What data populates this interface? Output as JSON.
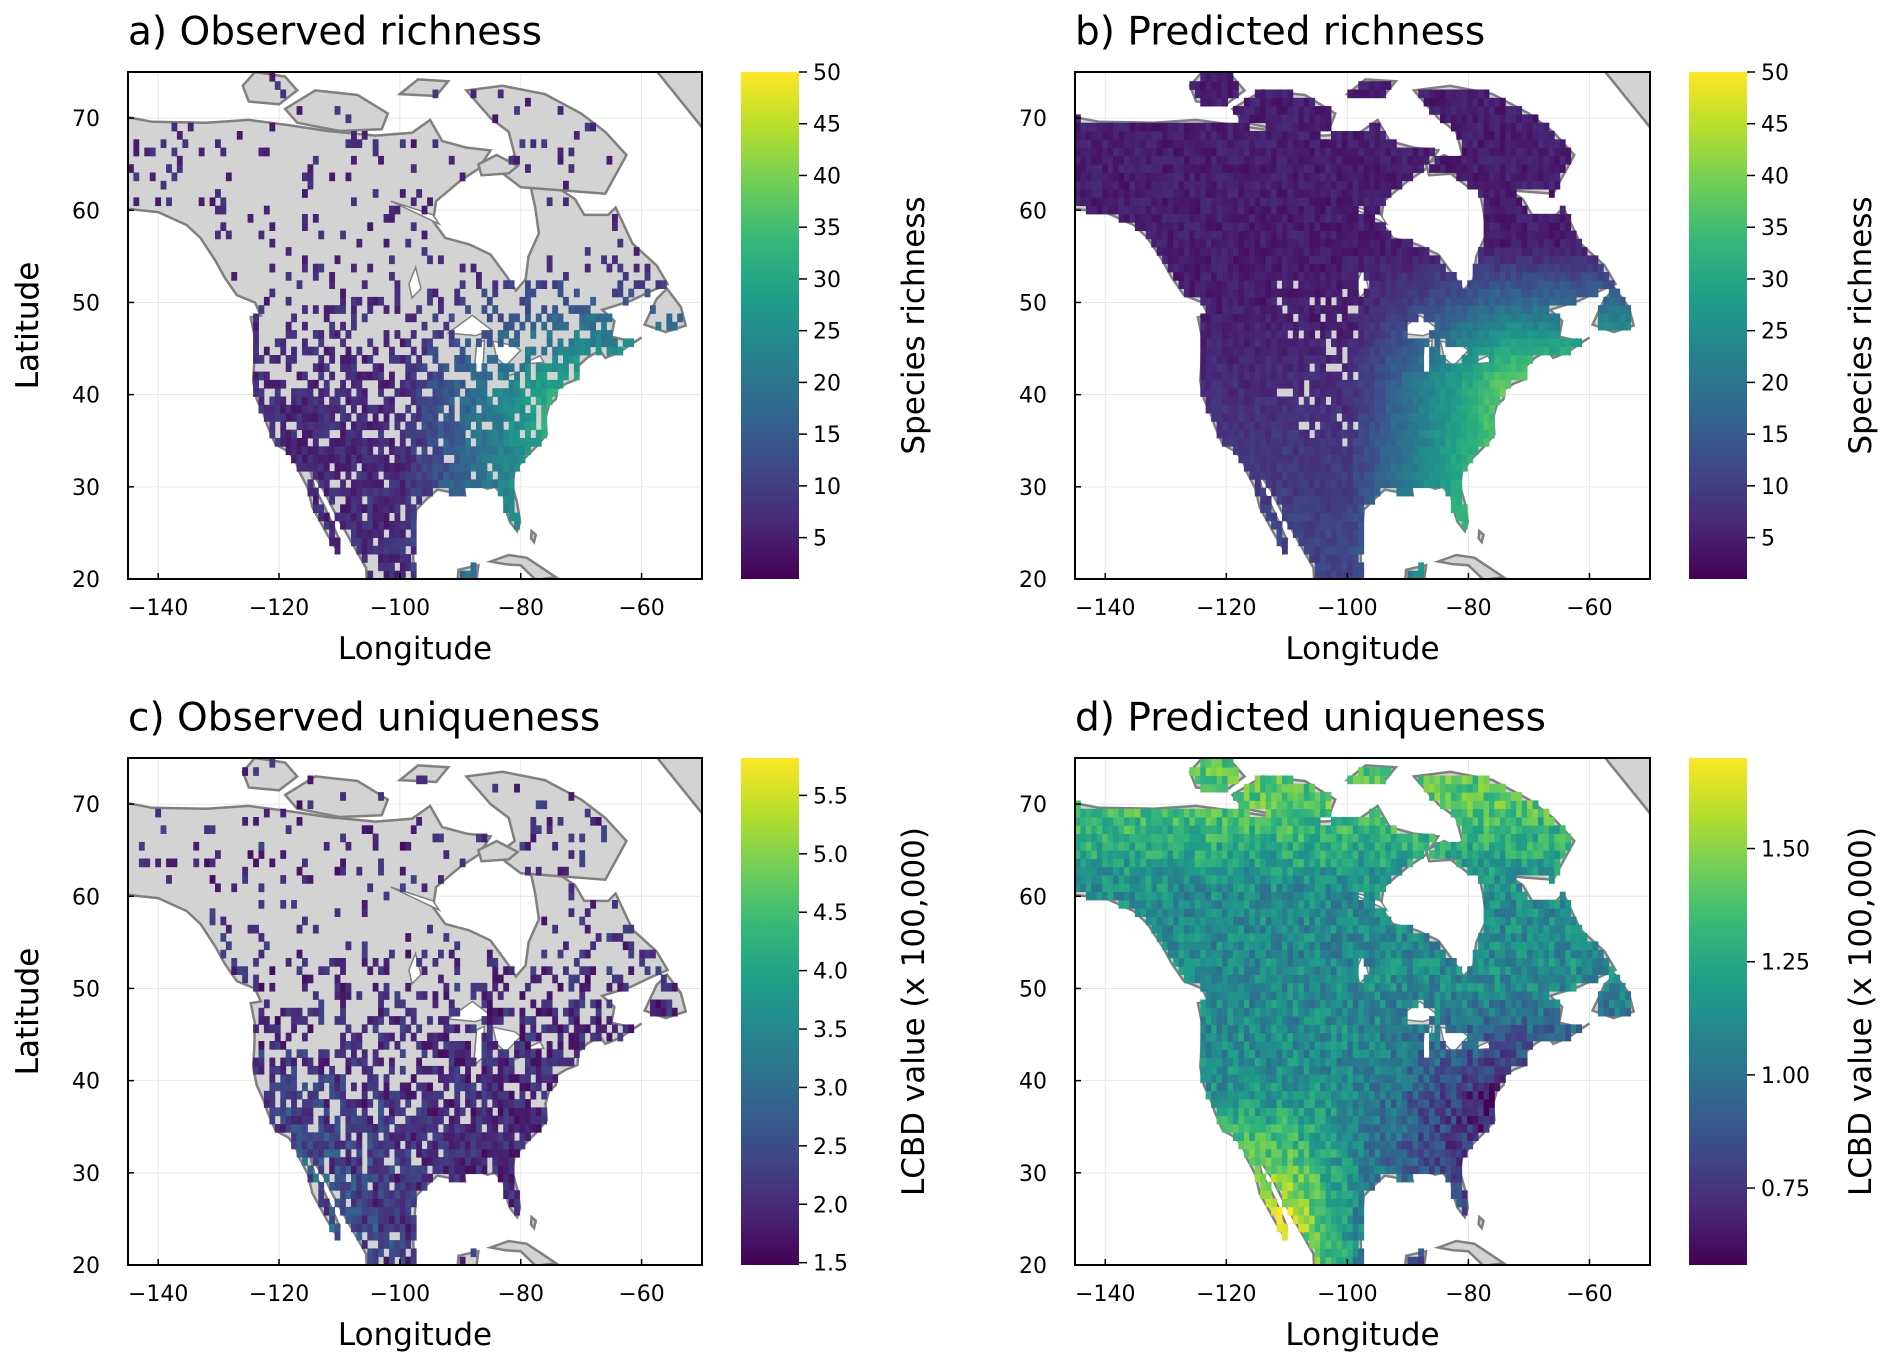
{
  "chart_data": [
    {
      "type": "heatmap",
      "title": "a) Observed richness",
      "xlabel": "Longitude",
      "ylabel": "Latitude",
      "xlim": [
        -145,
        -50
      ],
      "ylim": [
        20,
        75
      ],
      "xticks": [
        -140,
        -120,
        -100,
        -80,
        -60
      ],
      "yticks": [
        20,
        30,
        40,
        50,
        60,
        70
      ],
      "colorbar": {
        "label": "Species richness",
        "range": [
          1,
          50
        ],
        "ticks": [
          5,
          10,
          15,
          20,
          25,
          30,
          35,
          40,
          45,
          50
        ],
        "colormap": "viridis"
      },
      "grid": true
    },
    {
      "type": "heatmap",
      "title": "b) Predicted richness",
      "xlabel": "Longitude",
      "ylabel": "Latitude",
      "xlim": [
        -145,
        -50
      ],
      "ylim": [
        20,
        75
      ],
      "xticks": [
        -140,
        -120,
        -100,
        -80,
        -60
      ],
      "yticks": [
        20,
        30,
        40,
        50,
        60,
        70
      ],
      "colorbar": {
        "label": "Species richness",
        "range": [
          1,
          50
        ],
        "ticks": [
          5,
          10,
          15,
          20,
          25,
          30,
          35,
          40,
          45,
          50
        ],
        "colormap": "viridis"
      },
      "grid": true
    },
    {
      "type": "heatmap",
      "title": "c) Observed uniqueness",
      "xlabel": "Longitude",
      "ylabel": "Latitude",
      "xlim": [
        -145,
        -50
      ],
      "ylim": [
        20,
        75
      ],
      "xticks": [
        -140,
        -120,
        -100,
        -80,
        -60
      ],
      "yticks": [
        20,
        30,
        40,
        50,
        60,
        70
      ],
      "colorbar": {
        "label": "LCBD value (x 100,000)",
        "range": [
          1.48,
          5.82
        ],
        "ticks": [
          1.5,
          2.0,
          2.5,
          3.0,
          3.5,
          4.0,
          4.5,
          5.0,
          5.5
        ],
        "tick_labels": [
          "1.5",
          "2.0",
          "2.5",
          "3.0",
          "3.5",
          "4.0",
          "4.5",
          "5.0",
          "5.5"
        ],
        "colormap": "viridis"
      },
      "grid": true
    },
    {
      "type": "heatmap",
      "title": "d) Predicted uniqueness",
      "xlabel": "Longitude",
      "ylabel": "Latitude",
      "xlim": [
        -145,
        -50
      ],
      "ylim": [
        20,
        75
      ],
      "xticks": [
        -140,
        -120,
        -100,
        -80,
        -60
      ],
      "yticks": [
        20,
        30,
        40,
        50,
        60,
        70
      ],
      "colorbar": {
        "label": "LCBD value (x 100,000)",
        "range": [
          0.58,
          1.7
        ],
        "ticks": [
          0.75,
          1.0,
          1.25,
          1.5
        ],
        "tick_labels": [
          "0.75",
          "1.00",
          "1.25",
          "1.50"
        ],
        "colormap": "viridis"
      },
      "grid": true
    }
  ],
  "colors": {
    "land_no_data": "#d3d3d3",
    "coastline": "#808080",
    "viridis": [
      "#440154",
      "#482878",
      "#3e4989",
      "#31688e",
      "#26828e",
      "#1f9e89",
      "#35b779",
      "#6ece58",
      "#b5de2b",
      "#fde725"
    ]
  }
}
